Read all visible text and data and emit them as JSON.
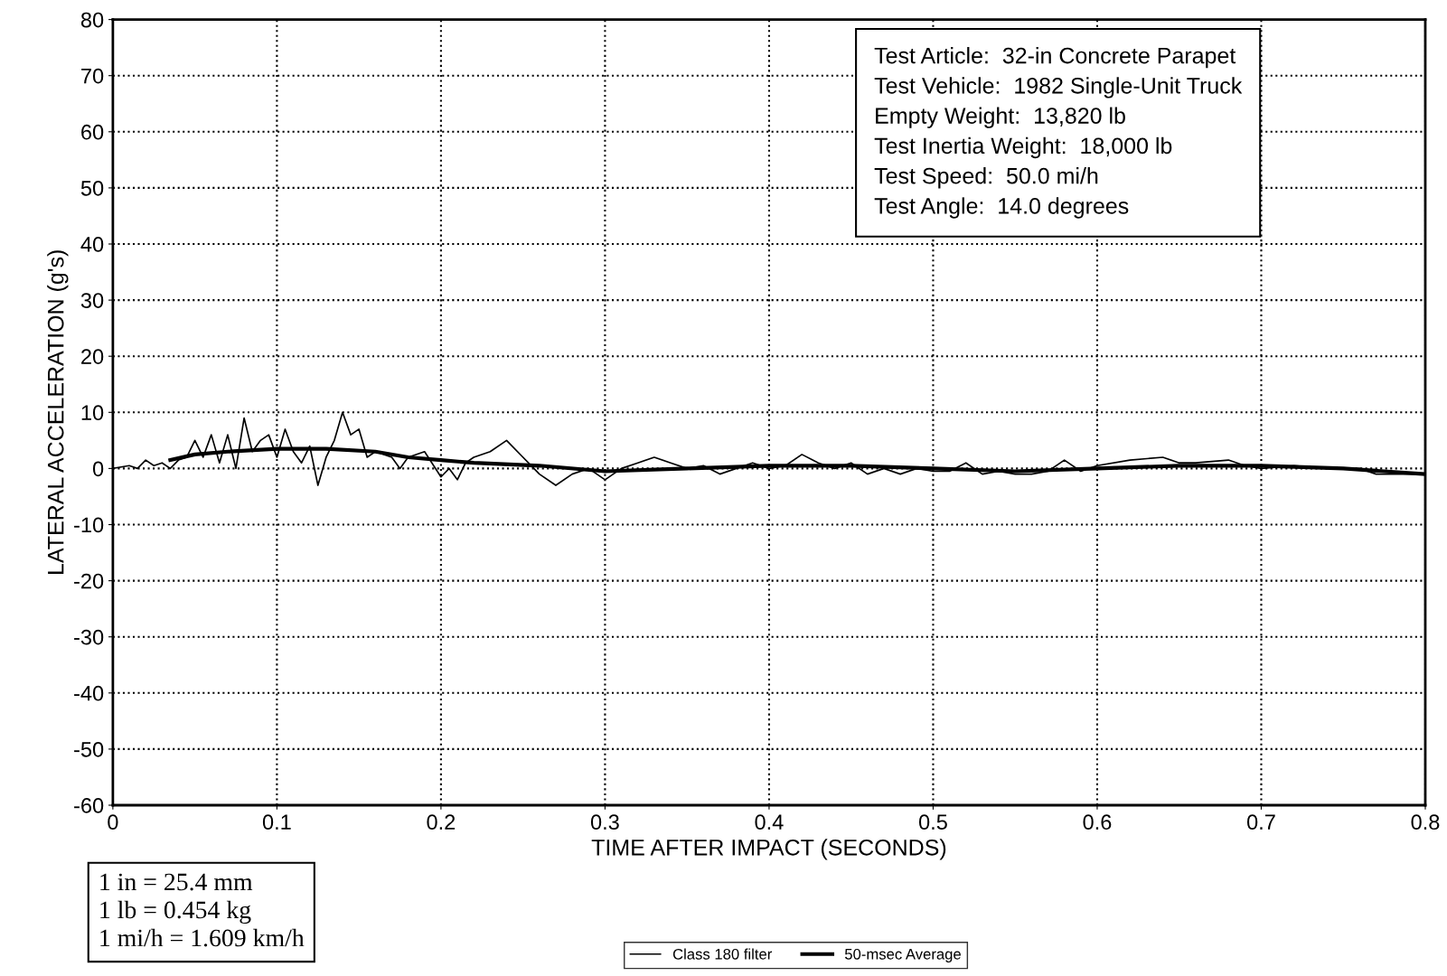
{
  "chart_data": {
    "type": "line",
    "xlabel": "TIME AFTER IMPACT (SECONDS)",
    "ylabel": "LATERAL ACCELERATION (g's)",
    "annotations": [
      "Test Article:  32-in Concrete Parapet\nTest Vehicle:  1982 Single-Unit Truck\nEmpty Weight:  13,820 lb\nTest Inertia Weight:  18,000 lb\nTest Speed:  50.0 mi/h\nTest Angle:  14.0 degrees",
      "1 in = 25.4 mm\n1 lb = 0.454 kg\n1 mi/h = 1.609 km/h"
    ],
    "series": [
      {
        "name": "Class 180 filter",
        "color": "#000000",
        "x": [
          0,
          0.01,
          0.015,
          0.02,
          0.025,
          0.03,
          0.035,
          0.04,
          0.045,
          0.05,
          0.055,
          0.06,
          0.065,
          0.07,
          0.075,
          0.08,
          0.085,
          0.09,
          0.095,
          0.1,
          0.105,
          0.11,
          0.115,
          0.12,
          0.125,
          0.13,
          0.135,
          0.14,
          0.145,
          0.15,
          0.155,
          0.16,
          0.17,
          0.175,
          0.18,
          0.19,
          0.2,
          0.205,
          0.21,
          0.215,
          0.22,
          0.23,
          0.24,
          0.25,
          0.26,
          0.27,
          0.28,
          0.29,
          0.3,
          0.31,
          0.32,
          0.33,
          0.34,
          0.35,
          0.36,
          0.37,
          0.38,
          0.39,
          0.4,
          0.41,
          0.42,
          0.43,
          0.44,
          0.45,
          0.46,
          0.47,
          0.48,
          0.49,
          0.5,
          0.51,
          0.52,
          0.53,
          0.54,
          0.55,
          0.56,
          0.57,
          0.58,
          0.59,
          0.6,
          0.62,
          0.64,
          0.65,
          0.66,
          0.68,
          0.69,
          0.7,
          0.72,
          0.74,
          0.76,
          0.77,
          0.78,
          0.8
        ],
        "values": [
          0,
          0.5,
          0,
          1.5,
          0.5,
          1,
          0,
          1.5,
          2,
          5,
          2,
          6,
          1,
          6,
          0,
          9,
          3,
          5,
          6,
          2,
          7,
          3,
          1,
          4,
          -3,
          2,
          5,
          10,
          6,
          7,
          2,
          3,
          2,
          0,
          2,
          3,
          -1.5,
          0,
          -2,
          1,
          2,
          3,
          5,
          2,
          -1,
          -3,
          -1,
          0,
          -2,
          0,
          1,
          2,
          1,
          0,
          0.5,
          -1,
          0,
          1,
          0,
          0.5,
          2.5,
          1,
          0,
          1,
          -1,
          0,
          -1,
          0,
          -0.5,
          -0.5,
          1,
          -1,
          -0.5,
          -1,
          -1,
          -0.5,
          1.5,
          -0.5,
          0.5,
          1.5,
          2,
          1,
          1,
          1.5,
          0.5,
          0,
          0.5,
          0,
          0,
          -1,
          -1,
          -1
        ]
      },
      {
        "name": "50-msec Average",
        "color": "#000000",
        "x": [
          0.035,
          0.05,
          0.07,
          0.1,
          0.13,
          0.16,
          0.18,
          0.2,
          0.22,
          0.26,
          0.3,
          0.35,
          0.4,
          0.45,
          0.5,
          0.55,
          0.6,
          0.65,
          0.7,
          0.75,
          0.8
        ],
        "values": [
          1.5,
          2.5,
          3,
          3.5,
          3.5,
          3,
          2,
          1.5,
          1,
          0.5,
          -0.5,
          0,
          0.5,
          0.5,
          0,
          -0.5,
          0,
          0.5,
          0.5,
          0,
          -1
        ]
      }
    ],
    "xlim": [
      0,
      0.8
    ],
    "xticks": [
      0,
      0.1,
      0.2,
      0.3,
      0.4,
      0.5,
      0.6,
      0.7,
      0.8
    ],
    "ylim": [
      -60,
      80
    ],
    "yticks": [
      -60,
      -50,
      -40,
      -30,
      -20,
      -10,
      0,
      10,
      20,
      30,
      40,
      50,
      60,
      70,
      80
    ],
    "grid": true,
    "legend": "bottom",
    "line_style": "solid",
    "marker": "none"
  }
}
